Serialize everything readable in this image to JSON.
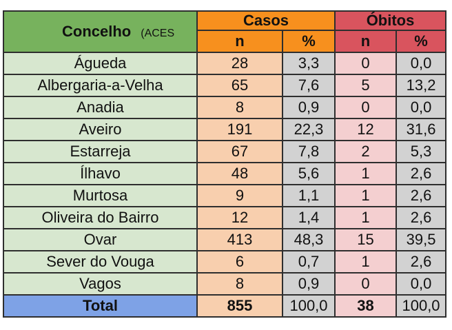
{
  "header": {
    "concelho": "Concelho",
    "aces": "(ACES",
    "casos": "Casos",
    "obitos": "Óbitos",
    "n": "n",
    "pct": "%"
  },
  "rows": [
    {
      "name": "Águeda",
      "casos_n": "28",
      "casos_pct": "3,3",
      "obitos_n": "0",
      "obitos_pct": "0,0"
    },
    {
      "name": "Albergaria-a-Velha",
      "casos_n": "65",
      "casos_pct": "7,6",
      "obitos_n": "5",
      "obitos_pct": "13,2"
    },
    {
      "name": "Anadia",
      "casos_n": "8",
      "casos_pct": "0,9",
      "obitos_n": "0",
      "obitos_pct": "0,0"
    },
    {
      "name": "Aveiro",
      "casos_n": "191",
      "casos_pct": "22,3",
      "obitos_n": "12",
      "obitos_pct": "31,6"
    },
    {
      "name": "Estarreja",
      "casos_n": "67",
      "casos_pct": "7,8",
      "obitos_n": "2",
      "obitos_pct": "5,3"
    },
    {
      "name": "Ílhavo",
      "casos_n": "48",
      "casos_pct": "5,6",
      "obitos_n": "1",
      "obitos_pct": "2,6"
    },
    {
      "name": "Murtosa",
      "casos_n": "9",
      "casos_pct": "1,1",
      "obitos_n": "1",
      "obitos_pct": "2,6"
    },
    {
      "name": "Oliveira do Bairro",
      "casos_n": "12",
      "casos_pct": "1,4",
      "obitos_n": "1",
      "obitos_pct": "2,6"
    },
    {
      "name": "Ovar",
      "casos_n": "413",
      "casos_pct": "48,3",
      "obitos_n": "15",
      "obitos_pct": "39,5"
    },
    {
      "name": "Sever do Vouga",
      "casos_n": "6",
      "casos_pct": "0,7",
      "obitos_n": "1",
      "obitos_pct": "2,6"
    },
    {
      "name": "Vagos",
      "casos_n": "8",
      "casos_pct": "0,9",
      "obitos_n": "0",
      "obitos_pct": "0,0"
    }
  ],
  "total": {
    "name": "Total",
    "casos_n": "855",
    "casos_pct": "100,0",
    "obitos_n": "38",
    "obitos_pct": "100,0"
  },
  "colors": {
    "concelho_header": "#77b25d",
    "casos_header": "#f7901e",
    "obitos_header": "#d9545e",
    "name_cells": "#d7e7cf",
    "casos_n_cells": "#f8cfae",
    "pct_cells": "#d2d2d2",
    "obitos_n_cells": "#f4cfd0",
    "total_name": "#7ea2e6"
  }
}
